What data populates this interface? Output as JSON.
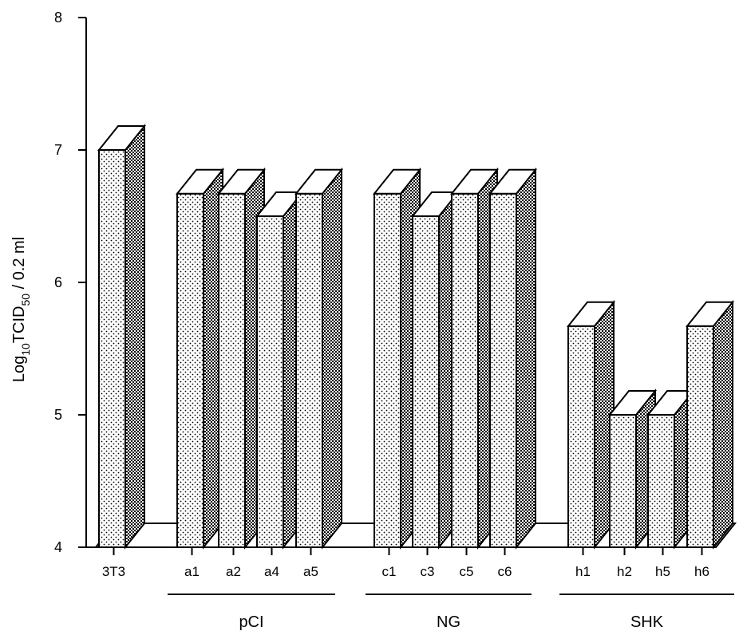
{
  "chart_data": {
    "type": "bar",
    "categories": [
      "3T3",
      "a1",
      "a2",
      "a4",
      "a5",
      "c1",
      "c3",
      "c5",
      "c6",
      "h1",
      "h2",
      "h5",
      "h6"
    ],
    "values": [
      7.0,
      6.67,
      6.67,
      6.5,
      6.67,
      6.67,
      6.5,
      6.67,
      6.67,
      5.67,
      5.0,
      5.0,
      5.67
    ],
    "groups": [
      {
        "label": "pCI",
        "categories": [
          "a1",
          "a2",
          "a4",
          "a5"
        ]
      },
      {
        "label": "NG",
        "categories": [
          "c1",
          "c3",
          "c5",
          "c6"
        ]
      },
      {
        "label": "SHK",
        "categories": [
          "h1",
          "h2",
          "h5",
          "h6"
        ]
      }
    ],
    "ylabel": {
      "main": "Log",
      "sub1": "10",
      "mid": "TCID",
      "sub2": "50",
      "tail": " / 0.2 ml"
    },
    "ylim": [
      4,
      8
    ],
    "yticks": [
      "4",
      "5",
      "6",
      "7",
      "8"
    ],
    "style": "3d-bars",
    "colors": {
      "bar_front": "#ffffff",
      "bar_side": "#555555",
      "dot": "#000000"
    }
  }
}
